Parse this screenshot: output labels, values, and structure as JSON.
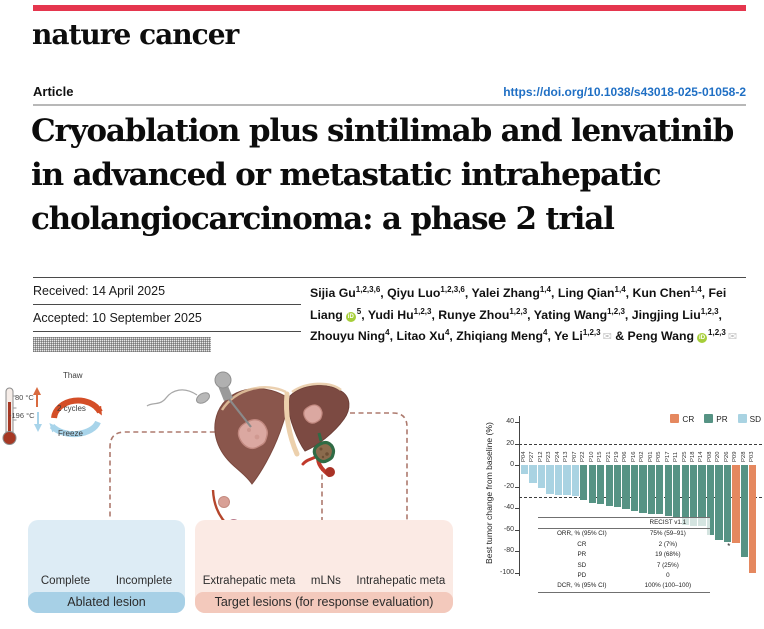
{
  "masthead": {
    "journal": "nature cancer",
    "article_label": "Article",
    "doi": "https://doi.org/10.1038/s43018-025-01058-2"
  },
  "title_lines": [
    "Cryoablation plus sintilimab and lenvatinib",
    "in advanced or metastatic intrahepatic",
    "cholangiocarcinoma: a phase 2 trial"
  ],
  "dates": {
    "received": "Received: 14 April 2025",
    "accepted": "Accepted: 10 September 2025"
  },
  "icons": {
    "orcid_label": "iD",
    "email_glyph": "✉"
  },
  "authors": {
    "list": [
      {
        "name": "Sijia Gu",
        "sup": "1,2,3,6"
      },
      {
        "name": "Qiyu Luo",
        "sup": "1,2,3,6"
      },
      {
        "name": "Yalei Zhang",
        "sup": "1,4"
      },
      {
        "name": "Ling Qian",
        "sup": "1,4"
      },
      {
        "name": "Kun Chen",
        "sup": "1,4"
      },
      {
        "name": "Fei Liang",
        "sup": "5",
        "orcid": true
      },
      {
        "name": "Yudi Hu",
        "sup": "1,2,3"
      },
      {
        "name": "Runye Zhou",
        "sup": "1,2,3"
      },
      {
        "name": "Yating Wang",
        "sup": "1,2,3"
      },
      {
        "name": "Jingjing Liu",
        "sup": "1,2,3"
      },
      {
        "name": "Zhouyu Ning",
        "sup": "4"
      },
      {
        "name": "Litao Xu",
        "sup": "4"
      },
      {
        "name": "Zhiqiang Meng",
        "sup": "4"
      },
      {
        "name": "Ye Li",
        "sup": "1,2,3",
        "email": true
      },
      {
        "name": "Peng Wang",
        "sup": "1,2,3",
        "orcid": true,
        "email": true
      }
    ]
  },
  "figure": {
    "thermometer": {
      "high_temp": "80 °C",
      "low_temp": "-196 °C"
    },
    "cycle": {
      "top_label": "Thaw",
      "center_label": "2 cycles",
      "bottom_label": "Freeze"
    },
    "ablated_box": {
      "item_labels": [
        "Complete",
        "Incomplete"
      ],
      "footer": "Ablated lesion"
    },
    "target_box": {
      "item_labels": [
        "Extrahepatic meta",
        "mLNs",
        "Intrahepatic meta"
      ],
      "footer": "Target lesions (for response evaluation)"
    }
  },
  "chart_data": {
    "type": "bar",
    "title": "",
    "xlabel": "",
    "ylabel": "Best tumor change from baseline (%)",
    "ylim": [
      -100,
      40
    ],
    "yticks": [
      40,
      20,
      0,
      -20,
      -40,
      -60,
      -80,
      -100
    ],
    "reference_lines": [
      20,
      -30
    ],
    "legend": [
      {
        "label": "CR",
        "color": "#e5885f"
      },
      {
        "label": "PR",
        "color": "#569384"
      },
      {
        "label": "SD",
        "color": "#a9d3e2"
      }
    ],
    "categories": [
      "P04",
      "P27",
      "P12",
      "P23",
      "P24",
      "P13",
      "P07",
      "P22",
      "P10",
      "P15",
      "P21",
      "P19",
      "P06",
      "P16",
      "P02",
      "P01",
      "P05",
      "P17",
      "P11",
      "P25",
      "P18",
      "P14",
      "P08",
      "P20",
      "P26",
      "P09",
      "P28",
      "P03"
    ],
    "values": [
      -8,
      -17,
      -21,
      -27,
      -28,
      -28,
      -29,
      -33,
      -35,
      -36,
      -38,
      -39,
      -41,
      -43,
      -45,
      -46,
      -46,
      -47,
      -48,
      -56,
      -57,
      -57,
      -65,
      -70,
      -72,
      -73,
      -86,
      -100
    ],
    "responses": [
      "SD",
      "SD",
      "SD",
      "SD",
      "SD",
      "SD",
      "SD",
      "PR",
      "PR",
      "PR",
      "PR",
      "PR",
      "PR",
      "PR",
      "PR",
      "PR",
      "PR",
      "PR",
      "PR",
      "PR",
      "PR",
      "PR",
      "PR",
      "PR",
      "PR",
      "CR",
      "PR",
      "CR"
    ],
    "annotation": {
      "text": "*",
      "category": "P09"
    },
    "inset_table": {
      "col_header": "RECIST v1.1",
      "rows": [
        {
          "label": "ORR, % (95% CI)",
          "value": "75% (59–91)"
        },
        {
          "label": "CR",
          "value": "2 (7%)"
        },
        {
          "label": "PR",
          "value": "19 (68%)"
        },
        {
          "label": "SD",
          "value": "7 (25%)"
        },
        {
          "label": "PD",
          "value": "0"
        },
        {
          "label": "DCR, % (95% CI)",
          "value": "100% (100–100)"
        }
      ]
    }
  }
}
